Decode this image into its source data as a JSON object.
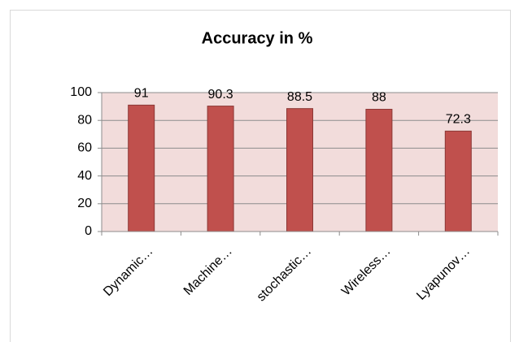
{
  "chart_data": {
    "type": "bar",
    "title": "Accuracy in %",
    "categories": [
      "Dynamic…",
      "Machine…",
      "stochastic…",
      "Wireless…",
      "Lyapunov…"
    ],
    "category_colors": [
      "#000000",
      "#000000",
      "#7f7f7f",
      "#7f7f7f",
      "#000000"
    ],
    "values": [
      91,
      90.3,
      88.5,
      88,
      72.3
    ],
    "color": "#c0504d",
    "ylim": [
      0,
      100
    ],
    "yticks": [
      0,
      20,
      40,
      60,
      80,
      100
    ],
    "grid": true
  }
}
